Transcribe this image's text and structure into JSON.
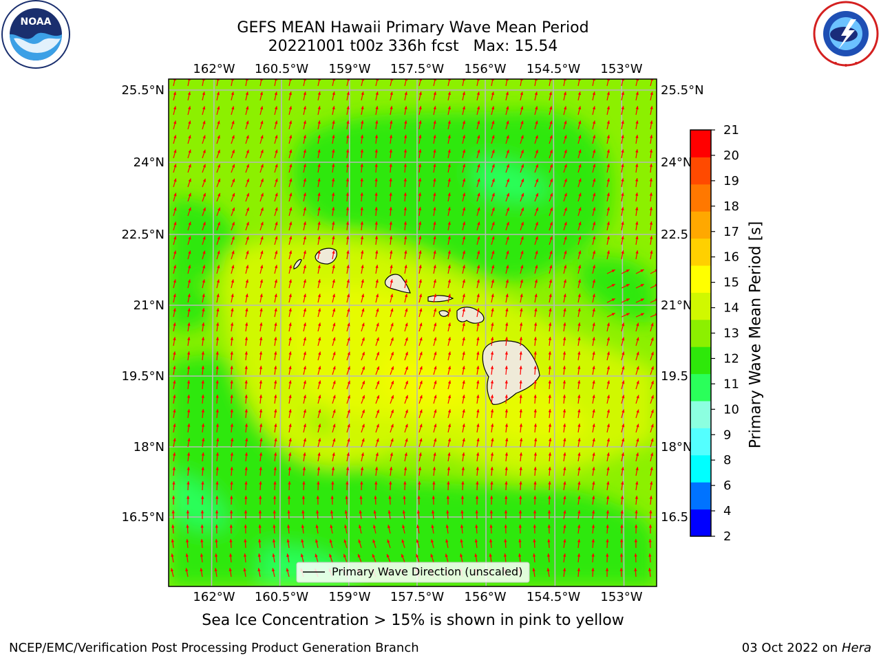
{
  "header": {
    "title_line1": "GEFS MEAN Hawaii Primary Wave Mean Period",
    "title_line2": "20221001 t00z 336h fcst   Max: 15.54"
  },
  "logos": {
    "left": {
      "icon": "noaa-logo",
      "text": "NOAA",
      "ring_text": "NATIONAL OCEANIC AND ATMOSPHERIC ADMINISTRATION · U.S. DEPARTMENT OF COMMERCE"
    },
    "right": {
      "icon": "nws-logo",
      "ring_text": "NATIONAL WEATHER SERVICE"
    }
  },
  "map": {
    "lon_labels": [
      "162°W",
      "160.5°W",
      "159°W",
      "157.5°W",
      "156°W",
      "154.5°W",
      "153°W"
    ],
    "lat_labels_left": [
      "25.5°N",
      "24°N",
      "22.5°N",
      "21°N",
      "19.5°N",
      "18°N",
      "16.5°N"
    ],
    "lat_labels_right": [
      "25.5°N",
      "24°N",
      "22.5",
      "21°N",
      "19.5",
      "18°N",
      "16.5"
    ],
    "legend_label": "Primary Wave Direction (unscaled)",
    "vector_color": "#ff0000",
    "land_color": "#efead8",
    "grid_color": "#b8b8b8"
  },
  "colorbar": {
    "title": "Primary Wave Mean Period [s]",
    "ticks": [
      "2",
      "4",
      "6",
      "8",
      "9",
      "10",
      "11",
      "12",
      "13",
      "14",
      "15",
      "16",
      "17",
      "18",
      "19",
      "20",
      "21"
    ],
    "colors": [
      "#0000ff",
      "#0073ff",
      "#00ffff",
      "#54ffff",
      "#8cffe0",
      "#2aff5a",
      "#2ee80a",
      "#8cf000",
      "#d0f800",
      "#ffff00",
      "#ffd000",
      "#ffa800",
      "#ff7800",
      "#ff4a00",
      "#ff0000"
    ]
  },
  "caption": "Sea Ice Concentration > 15% is shown in pink to yellow",
  "footer": {
    "left": "NCEP/EMC/Verification Post Processing Product Generation Branch",
    "right_date": "03 Oct 2022 on ",
    "right_host": "Hera"
  }
}
